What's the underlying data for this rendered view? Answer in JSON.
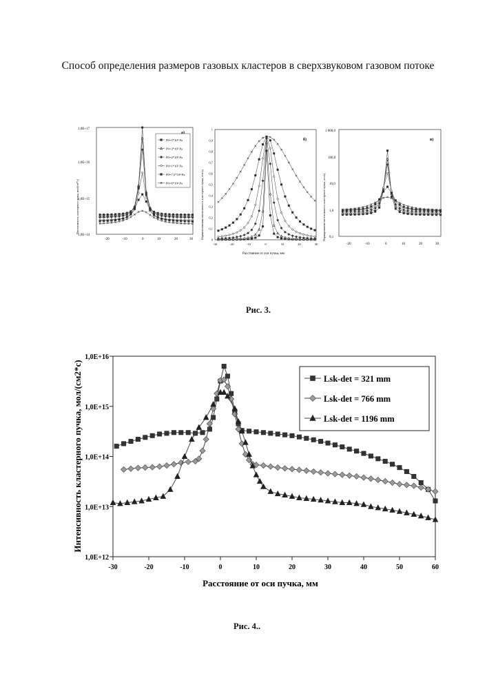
{
  "document": {
    "title": "Способ определения размеров газовых кластеров в сверхзвуковом газовом потоке",
    "fig3_caption": "Рис. 3.",
    "fig4_caption": "Рис. 4.."
  },
  "fig3": {
    "panel_a": {
      "label": "а)",
      "ylabel": "Интенсивность кластерного пучка, мол/(см²*с)",
      "yticks": [
        "1,0E+14",
        "1,0E+15",
        "1,0E+16",
        "1,0E+17"
      ],
      "xticks": [
        "-20",
        "-10",
        "0",
        "10",
        "20",
        "30"
      ],
      "legend": [
        "P0=5*10⁵ Pa",
        "P0=3*10⁵ Pa",
        "P0=2*10⁵ Pa",
        "P0=1*10⁵ Pa",
        "P0=7,5*10⁴ Pa",
        "P0=6*10⁴ Pa"
      ]
    },
    "panel_b": {
      "label": "б)",
      "ylabel": "Нормализованная интенсивность кластерного пучка, отн.ед",
      "xlabel": "Расстояние от оси пучка, мм",
      "yticks": [
        "0",
        "0,1",
        "0,2",
        "0,3",
        "0,4",
        "0,5",
        "0,6",
        "0,7",
        "0,8",
        "0,9",
        "1"
      ],
      "xticks": [
        "-30",
        "-20",
        "-10",
        "0",
        "10",
        "20",
        "30"
      ]
    },
    "panel_c": {
      "label": "в)",
      "ylabel": "Нормированная интенсивность кластерного пучка, отн.ед",
      "yticks": [
        "0,1",
        "1,0",
        "10,0",
        "100,0",
        "1 000,0"
      ],
      "xticks": [
        "-20",
        "-10",
        "0",
        "10",
        "20",
        "30"
      ]
    }
  },
  "chart_data": {
    "type": "line",
    "title": "",
    "xlabel": "Расстояние от оси пучка, мм",
    "ylabel": "Интенсивность кластерного пучка, мол/(см2*с)",
    "xlim": [
      -30,
      60
    ],
    "ylim": [
      1000000000000.0,
      1e+16
    ],
    "yscale": "log",
    "grid": false,
    "legend_position": "top-right",
    "xticks": [
      "-30",
      "-20",
      "-10",
      "0",
      "10",
      "20",
      "30",
      "40",
      "50",
      "60"
    ],
    "yticks": [
      "1,0E+12",
      "1,0E+13",
      "1,0E+14",
      "1,0E+15",
      "1,0E+16"
    ],
    "series": [
      {
        "name": "Lsk-det = 321 mm",
        "marker": "square",
        "points": [
          [
            -29,
            160000000000000.0
          ],
          [
            -27,
            180000000000000.0
          ],
          [
            -25,
            200000000000000.0
          ],
          [
            -23,
            220000000000000.0
          ],
          [
            -21,
            240000000000000.0
          ],
          [
            -19,
            260000000000000.0
          ],
          [
            -17,
            280000000000000.0
          ],
          [
            -15,
            290000000000000.0
          ],
          [
            -13,
            300000000000000.0
          ],
          [
            -11,
            300000000000000.0
          ],
          [
            -9,
            300000000000000.0
          ],
          [
            -7,
            290000000000000.0
          ],
          [
            -5,
            300000000000000.0
          ],
          [
            -3,
            350000000000000.0
          ],
          [
            -2,
            600000000000000.0
          ],
          [
            -1,
            1400000000000000.0
          ],
          [
            0,
            3200000000000000.0
          ],
          [
            1,
            6300000000000000.0
          ],
          [
            2,
            4000000000000000.0
          ],
          [
            3,
            1800000000000000.0
          ],
          [
            4,
            800000000000000.0
          ],
          [
            5,
            450000000000000.0
          ],
          [
            6,
            330000000000000.0
          ],
          [
            8,
            320000000000000.0
          ],
          [
            10,
            310000000000000.0
          ],
          [
            12,
            300000000000000.0
          ],
          [
            14,
            290000000000000.0
          ],
          [
            16,
            280000000000000.0
          ],
          [
            18,
            270000000000000.0
          ],
          [
            20,
            260000000000000.0
          ],
          [
            22,
            245000000000000.0
          ],
          [
            24,
            230000000000000.0
          ],
          [
            26,
            215000000000000.0
          ],
          [
            28,
            200000000000000.0
          ],
          [
            30,
            185000000000000.0
          ],
          [
            32,
            170000000000000.0
          ],
          [
            34,
            155000000000000.0
          ],
          [
            36,
            140000000000000.0
          ],
          [
            38,
            128000000000000.0
          ],
          [
            40,
            115000000000000.0
          ],
          [
            42,
            102000000000000.0
          ],
          [
            44,
            90000000000000.0
          ],
          [
            46,
            80000000000000.0
          ],
          [
            48,
            70000000000000.0
          ],
          [
            50,
            60000000000000.0
          ],
          [
            52,
            50000000000000.0
          ],
          [
            54,
            40000000000000.0
          ],
          [
            56,
            30000000000000.0
          ],
          [
            58,
            22000000000000.0
          ],
          [
            60,
            13000000000000.0
          ]
        ]
      },
      {
        "name": "Lsk-det = 766 mm",
        "marker": "diamond",
        "points": [
          [
            -27,
            55000000000000.0
          ],
          [
            -25,
            57000000000000.0
          ],
          [
            -23,
            59000000000000.0
          ],
          [
            -21,
            60000000000000.0
          ],
          [
            -19,
            61000000000000.0
          ],
          [
            -17,
            63000000000000.0
          ],
          [
            -15,
            66000000000000.0
          ],
          [
            -13,
            70000000000000.0
          ],
          [
            -11,
            75000000000000.0
          ],
          [
            -9,
            78000000000000.0
          ],
          [
            -7,
            80000000000000.0
          ],
          [
            -6,
            90000000000000.0
          ],
          [
            -5,
            130000000000000.0
          ],
          [
            -4,
            220000000000000.0
          ],
          [
            -3,
            450000000000000.0
          ],
          [
            -2,
            900000000000000.0
          ],
          [
            -1,
            1800000000000000.0
          ],
          [
            0,
            3300000000000000.0
          ],
          [
            1,
            3400000000000000.0
          ],
          [
            2,
            2500000000000000.0
          ],
          [
            3,
            1400000000000000.0
          ],
          [
            4,
            700000000000000.0
          ],
          [
            5,
            350000000000000.0
          ],
          [
            6,
            180000000000000.0
          ],
          [
            7,
            110000000000000.0
          ],
          [
            8,
            85000000000000.0
          ],
          [
            9,
            70000000000000.0
          ],
          [
            10,
            68000000000000.0
          ],
          [
            12,
            66000000000000.0
          ],
          [
            14,
            63000000000000.0
          ],
          [
            16,
            60000000000000.0
          ],
          [
            18,
            58000000000000.0
          ],
          [
            20,
            56000000000000.0
          ],
          [
            22,
            54000000000000.0
          ],
          [
            24,
            52000000000000.0
          ],
          [
            26,
            50000000000000.0
          ],
          [
            28,
            48000000000000.0
          ],
          [
            30,
            46000000000000.0
          ],
          [
            32,
            44500000000000.0
          ],
          [
            34,
            43000000000000.0
          ],
          [
            36,
            41500000000000.0
          ],
          [
            38,
            40000000000000.0
          ],
          [
            40,
            38000000000000.0
          ],
          [
            42,
            36000000000000.0
          ],
          [
            44,
            34000000000000.0
          ],
          [
            46,
            32000000000000.0
          ],
          [
            48,
            30000000000000.0
          ],
          [
            50,
            28000000000000.0
          ],
          [
            52,
            27000000000000.0
          ],
          [
            54,
            26000000000000.0
          ],
          [
            56,
            24000000000000.0
          ],
          [
            58,
            22000000000000.0
          ],
          [
            60,
            20000000000000.0
          ]
        ]
      },
      {
        "name": "Lsk-det = 1196 mm",
        "marker": "triangle",
        "points": [
          [
            -30,
            12000000000000.0
          ],
          [
            -28,
            11500000000000.0
          ],
          [
            -26,
            12000000000000.0
          ],
          [
            -24,
            12500000000000.0
          ],
          [
            -22,
            13000000000000.0
          ],
          [
            -20,
            14000000000000.0
          ],
          [
            -18,
            15000000000000.0
          ],
          [
            -16,
            16000000000000.0
          ],
          [
            -14,
            22000000000000.0
          ],
          [
            -12,
            40000000000000.0
          ],
          [
            -10,
            100000000000000.0
          ],
          [
            -8,
            220000000000000.0
          ],
          [
            -6,
            380000000000000.0
          ],
          [
            -4,
            600000000000000.0
          ],
          [
            -2,
            1100000000000000.0
          ],
          [
            0,
            1900000000000000.0
          ],
          [
            1,
            1900000000000000.0
          ],
          [
            2,
            1600000000000000.0
          ],
          [
            4,
            900000000000000.0
          ],
          [
            5,
            500000000000000.0
          ],
          [
            6,
            320000000000000.0
          ],
          [
            7,
            190000000000000.0
          ],
          [
            8,
            110000000000000.0
          ],
          [
            9,
            65000000000000.0
          ],
          [
            10,
            43000000000000.0
          ],
          [
            11,
            32000000000000.0
          ],
          [
            12,
            25000000000000.0
          ],
          [
            14,
            20000000000000.0
          ],
          [
            16,
            18000000000000.0
          ],
          [
            18,
            17000000000000.0
          ],
          [
            20,
            16000000000000.0
          ],
          [
            22,
            15000000000000.0
          ],
          [
            24,
            14500000000000.0
          ],
          [
            26,
            14000000000000.0
          ],
          [
            28,
            13500000000000.0
          ],
          [
            30,
            13000000000000.0
          ],
          [
            32,
            12500000000000.0
          ],
          [
            34,
            12000000000000.0
          ],
          [
            36,
            12000000000000.0
          ],
          [
            38,
            11500000000000.0
          ],
          [
            40,
            11000000000000.0
          ],
          [
            42,
            10000000000000.0
          ],
          [
            44,
            9500000000000.0
          ],
          [
            46,
            9000000000000.0
          ],
          [
            48,
            8500000000000.0
          ],
          [
            50,
            8000000000000.0
          ],
          [
            52,
            7500000000000.0
          ],
          [
            54,
            7000000000000.0
          ],
          [
            56,
            6500000000000.0
          ],
          [
            58,
            6000000000000.0
          ],
          [
            60,
            5500000000000.0
          ]
        ]
      }
    ]
  }
}
